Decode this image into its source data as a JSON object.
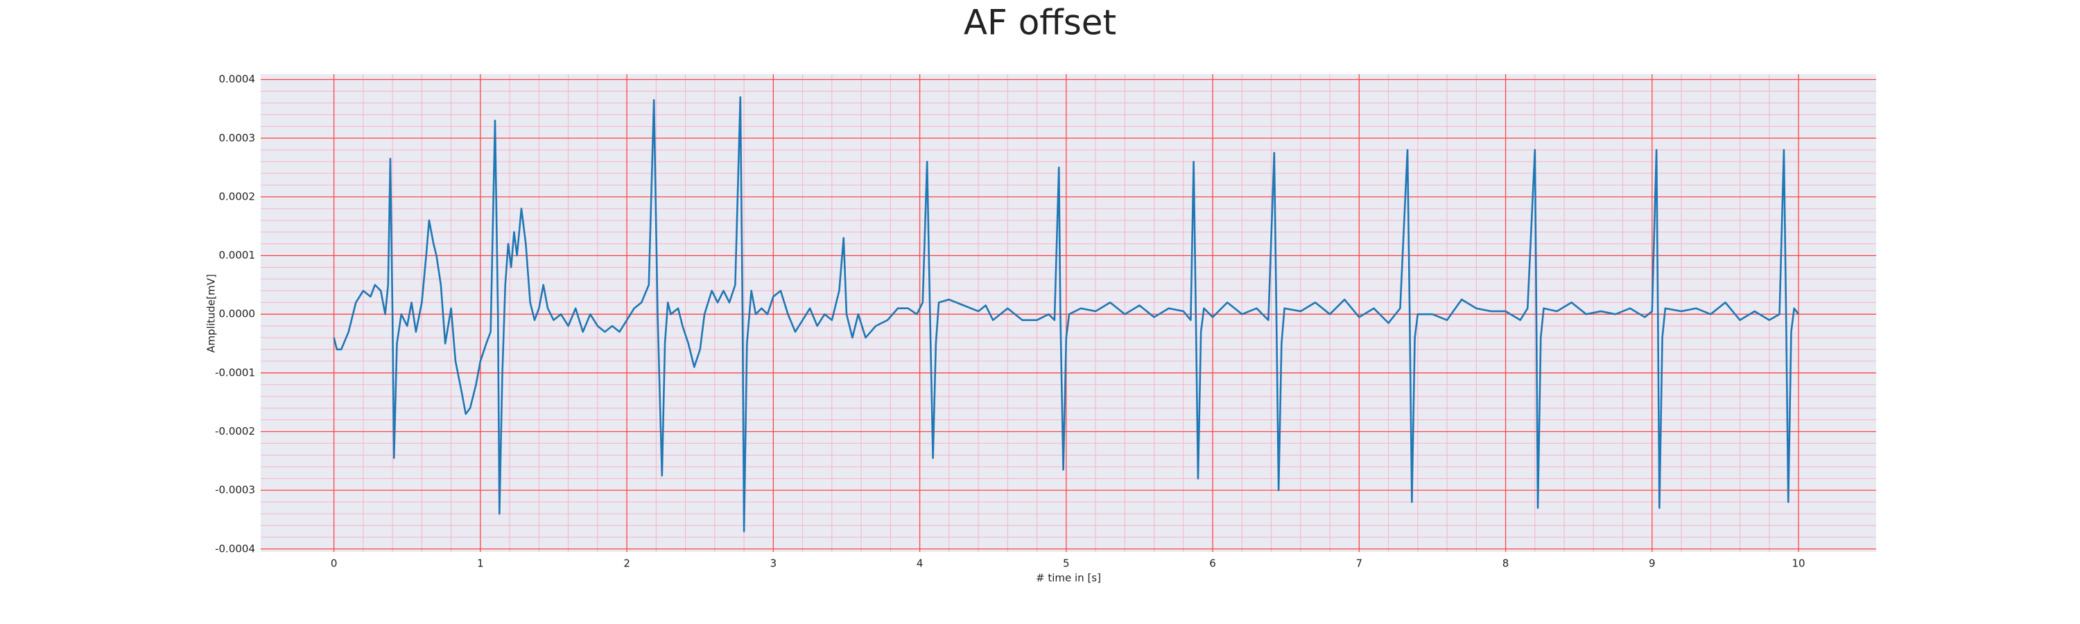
{
  "chart_data": {
    "type": "line",
    "title": "AF offset",
    "xlabel": "# time in [s]",
    "ylabel": "Amplitude[mV]",
    "xlim": [
      -0.5,
      10.53
    ],
    "ylim": [
      -0.000405,
      0.000409
    ],
    "xticks": [
      0,
      1,
      2,
      3,
      4,
      5,
      6,
      7,
      8,
      9,
      10
    ],
    "yticks": [
      {
        "value": 0.0004,
        "label": "0.0004"
      },
      {
        "value": 0.0003,
        "label": "0.0003"
      },
      {
        "value": 0.0002,
        "label": "0.0002"
      },
      {
        "value": 0.0001,
        "label": "0.0001"
      },
      {
        "value": 0,
        "label": "0.0000"
      },
      {
        "value": -0.0001,
        "label": "-0.0001"
      },
      {
        "value": -0.0002,
        "label": "-0.0002"
      },
      {
        "value": -0.0003,
        "label": "-0.0003"
      },
      {
        "value": -0.0004,
        "label": "-0.0004"
      }
    ],
    "grid": true,
    "minor_grid": true,
    "grid_color": "#ff4444",
    "minor_grid_color": "#f4b4c8",
    "background": "#eaeaf2",
    "x": [
      0,
      0.02,
      0.05,
      0.1,
      0.15,
      0.2,
      0.25,
      0.28,
      0.32,
      0.35,
      0.37,
      0.385,
      0.4,
      0.41,
      0.43,
      0.46,
      0.5,
      0.53,
      0.56,
      0.6,
      0.63,
      0.65,
      0.68,
      0.7,
      0.73,
      0.76,
      0.8,
      0.83,
      0.87,
      0.9,
      0.93,
      0.97,
      1.0,
      1.04,
      1.07,
      1.1,
      1.12,
      1.13,
      1.15,
      1.17,
      1.19,
      1.21,
      1.23,
      1.25,
      1.28,
      1.31,
      1.34,
      1.37,
      1.4,
      1.43,
      1.46,
      1.5,
      1.55,
      1.6,
      1.65,
      1.7,
      1.75,
      1.8,
      1.85,
      1.9,
      1.95,
      2.0,
      2.05,
      2.1,
      2.15,
      2.185,
      2.21,
      2.24,
      2.26,
      2.28,
      2.3,
      2.35,
      2.38,
      2.42,
      2.46,
      2.5,
      2.53,
      2.58,
      2.62,
      2.66,
      2.7,
      2.74,
      2.775,
      2.79,
      2.8,
      2.82,
      2.85,
      2.88,
      2.92,
      2.96,
      3.0,
      3.05,
      3.1,
      3.15,
      3.2,
      3.25,
      3.3,
      3.35,
      3.4,
      3.45,
      3.48,
      3.5,
      3.54,
      3.58,
      3.63,
      3.7,
      3.78,
      3.85,
      3.92,
      3.98,
      4.02,
      4.05,
      4.07,
      4.09,
      4.11,
      4.13,
      4.2,
      4.3,
      4.4,
      4.45,
      4.5,
      4.6,
      4.7,
      4.8,
      4.88,
      4.92,
      4.95,
      4.96,
      4.98,
      5.0,
      5.02,
      5.1,
      5.2,
      5.3,
      5.4,
      5.5,
      5.6,
      5.7,
      5.8,
      5.85,
      5.87,
      5.885,
      5.9,
      5.92,
      5.94,
      6.0,
      6.1,
      6.2,
      6.3,
      6.38,
      6.42,
      6.435,
      6.45,
      6.47,
      6.49,
      6.6,
      6.7,
      6.8,
      6.9,
      7.0,
      7.1,
      7.2,
      7.28,
      7.33,
      7.345,
      7.36,
      7.38,
      7.4,
      7.5,
      7.6,
      7.7,
      7.8,
      7.9,
      8.0,
      8.1,
      8.15,
      8.2,
      8.21,
      8.22,
      8.24,
      8.26,
      8.35,
      8.45,
      8.55,
      8.65,
      8.75,
      8.85,
      8.95,
      9.0,
      9.03,
      9.04,
      9.05,
      9.07,
      9.09,
      9.2,
      9.3,
      9.4,
      9.5,
      9.6,
      9.7,
      9.8,
      9.87,
      9.9,
      9.915,
      9.93,
      9.95,
      9.97,
      10.0
    ],
    "series": [
      {
        "name": "AF offset",
        "color": "#1f77b4",
        "values": [
          -4e-05,
          -6e-05,
          -6e-05,
          -3e-05,
          2e-05,
          4e-05,
          3e-05,
          5e-05,
          4e-05,
          0,
          5e-05,
          0.000265,
          0,
          -0.000245,
          -5e-05,
          0,
          -2e-05,
          2e-05,
          -3e-05,
          2e-05,
          0.0001,
          0.00016,
          0.00012,
          0.0001,
          5e-05,
          -5e-05,
          1e-05,
          -8e-05,
          -0.00013,
          -0.00017,
          -0.00016,
          -0.00012,
          -8e-05,
          -5e-05,
          -3e-05,
          0.00033,
          0,
          -0.00034,
          -0.0001,
          5e-05,
          0.00012,
          8e-05,
          0.00014,
          0.0001,
          0.00018,
          0.00012,
          2e-05,
          -1e-05,
          1e-05,
          5e-05,
          1e-05,
          -1e-05,
          0,
          -2e-05,
          1e-05,
          -3e-05,
          0,
          -2e-05,
          -3e-05,
          -2e-05,
          -3e-05,
          -1e-05,
          1e-05,
          2e-05,
          5e-05,
          0.000365,
          0,
          -0.000275,
          -5e-05,
          2e-05,
          0,
          1e-05,
          -2e-05,
          -5e-05,
          -9e-05,
          -6e-05,
          0,
          4e-05,
          2e-05,
          4e-05,
          2e-05,
          5e-05,
          0.00037,
          0,
          -0.00037,
          -5e-05,
          4e-05,
          0,
          1e-05,
          0,
          3e-05,
          4e-05,
          0,
          -3e-05,
          -1e-05,
          1e-05,
          -2e-05,
          0,
          -1e-05,
          4e-05,
          0.00013,
          0,
          -4e-05,
          0,
          -4e-05,
          -2e-05,
          -1e-05,
          1e-05,
          1e-05,
          0,
          2e-05,
          0.00026,
          0,
          -0.000245,
          -5e-05,
          2e-05,
          2.5e-05,
          1.5e-05,
          5e-06,
          1.5e-05,
          -1e-05,
          1e-05,
          -1e-05,
          -1e-05,
          0,
          -1e-05,
          0.00025,
          0,
          -0.000265,
          -4e-05,
          0,
          1e-05,
          5e-06,
          2e-05,
          0,
          1.5e-05,
          -5e-06,
          1e-05,
          5e-06,
          -1e-05,
          0.00026,
          0,
          -0.00028,
          -3e-05,
          1e-05,
          -5e-06,
          2e-05,
          0,
          1e-05,
          -1e-05,
          0.000275,
          0,
          -0.0003,
          -5e-05,
          1e-05,
          5e-06,
          2e-05,
          0,
          2.5e-05,
          -5e-06,
          1e-05,
          -1.5e-05,
          1e-05,
          0.00028,
          0,
          -0.00032,
          -4e-05,
          0,
          0,
          -1e-05,
          2.5e-05,
          1e-05,
          5e-06,
          5e-06,
          -1e-05,
          1e-05,
          0.00028,
          0,
          -0.00033,
          -4e-05,
          1e-05,
          5e-06,
          2e-05,
          0,
          5e-06,
          0,
          1e-05,
          -5e-06,
          5e-06,
          0.00028,
          0,
          -0.00033,
          -4e-05,
          1e-05,
          5e-06,
          1e-05,
          0,
          2e-05,
          -1e-05,
          5e-06,
          -1e-05,
          0,
          0.00028,
          0,
          -0.00032,
          -3e-05,
          1e-05,
          0
        ]
      }
    ]
  }
}
